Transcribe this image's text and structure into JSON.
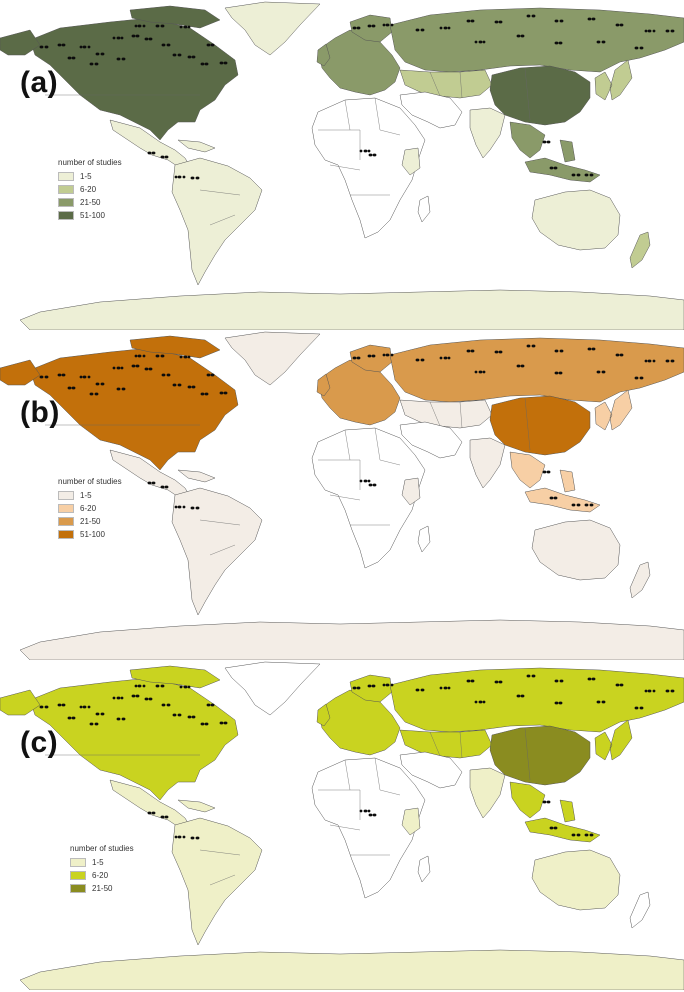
{
  "panels": [
    {
      "label": "(a)",
      "legend_title": "number of studies",
      "legend": [
        {
          "text": "1-5",
          "color": "#edefd6"
        },
        {
          "text": "6-20",
          "color": "#c1cc92"
        },
        {
          "text": "21-50",
          "color": "#8a9a69"
        },
        {
          "text": "51-100",
          "color": "#5b6b47"
        }
      ],
      "fills": {
        "north_america": "#5b6b47",
        "greenland": "#edefd6",
        "central_america": "#edefd6",
        "south_america": "#edefd6",
        "europe": "#8a9a69",
        "russia": "#8a9a69",
        "central_asia": "#c1cc92",
        "china": "#5b6b47",
        "india": "#edefd6",
        "southeast_asia": "#8a9a69",
        "japan": "#c1cc92",
        "australia": "#edefd6",
        "new_zealand": "#c1cc92",
        "east_africa": "#edefd6",
        "antarctica": "#edefd6"
      }
    },
    {
      "label": "(b)",
      "legend_title": "number of studies",
      "legend": [
        {
          "text": "1-5",
          "color": "#f3ede6"
        },
        {
          "text": "6-20",
          "color": "#f7cfa5"
        },
        {
          "text": "21-50",
          "color": "#d99a4c"
        },
        {
          "text": "51-100",
          "color": "#c2700b"
        }
      ],
      "fills": {
        "north_america": "#c2700b",
        "greenland": "#f3ede6",
        "central_america": "#f3ede6",
        "south_america": "#f3ede6",
        "europe": "#d99a4c",
        "russia": "#d99a4c",
        "central_asia": "#f3ede6",
        "china": "#c2700b",
        "india": "#f3ede6",
        "southeast_asia": "#f7cfa5",
        "japan": "#f7cfa5",
        "australia": "#f3ede6",
        "new_zealand": "#f3ede6",
        "east_africa": "#f3ede6",
        "antarctica": "#f3ede6"
      }
    },
    {
      "label": "(c)",
      "legend_title": "number of studies",
      "legend": [
        {
          "text": "1-5",
          "color": "#eff0c8"
        },
        {
          "text": "6-20",
          "color": "#c9d320"
        },
        {
          "text": "21-50",
          "color": "#8a8c20"
        }
      ],
      "fills": {
        "north_america": "#c9d320",
        "greenland": "#ffffff",
        "central_america": "#eff0c8",
        "south_america": "#eff0c8",
        "europe": "#c9d320",
        "russia": "#c9d320",
        "central_asia": "#c9d320",
        "china": "#8a8c20",
        "india": "#eff0c8",
        "southeast_asia": "#c9d320",
        "japan": "#c9d320",
        "australia": "#eff0c8",
        "new_zealand": "#ffffff",
        "east_africa": "#eff0c8",
        "antarctica": "#eff0c8"
      }
    }
  ]
}
